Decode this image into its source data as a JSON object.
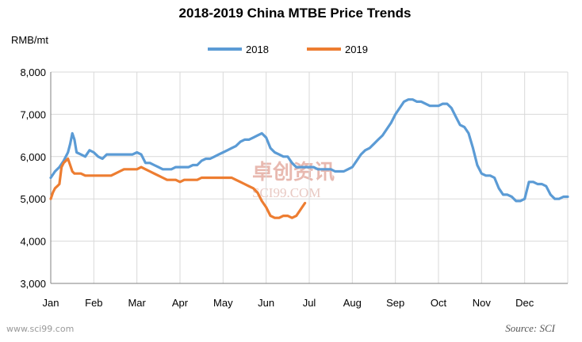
{
  "chart_data": {
    "type": "line",
    "title": "2018-2019 China MTBE Price Trends",
    "ylabel": "RMB/mt",
    "xlabel": "",
    "ylim": [
      3000,
      8000
    ],
    "yticks": [
      3000,
      4000,
      5000,
      6000,
      7000,
      8000
    ],
    "ytick_labels": [
      "3,000",
      "4,000",
      "5,000",
      "6,000",
      "7,000",
      "8,000"
    ],
    "xlim": [
      0,
      12
    ],
    "months": [
      "Jan",
      "Feb",
      "Mar",
      "Apr",
      "May",
      "Jun",
      "Jul",
      "Aug",
      "Sep",
      "Oct",
      "Nov",
      "Dec"
    ],
    "grid": true,
    "legend": "top-center",
    "source": "Source: SCI",
    "watermark_cn": "卓创资讯",
    "watermark_en": "SCI99.COM",
    "corner_watermark": "www.sci99.com",
    "series": [
      {
        "name": "2018",
        "color": "#5b9bd5",
        "x": [
          0,
          0.1,
          0.2,
          0.3,
          0.4,
          0.45,
          0.5,
          0.55,
          0.6,
          0.7,
          0.8,
          0.9,
          1.0,
          1.1,
          1.2,
          1.3,
          1.4,
          1.5,
          1.6,
          1.7,
          1.8,
          1.9,
          2.0,
          2.1,
          2.2,
          2.3,
          2.4,
          2.5,
          2.6,
          2.7,
          2.8,
          2.9,
          3.0,
          3.1,
          3.2,
          3.3,
          3.4,
          3.5,
          3.6,
          3.7,
          3.8,
          3.9,
          4.0,
          4.1,
          4.2,
          4.3,
          4.4,
          4.5,
          4.6,
          4.7,
          4.8,
          4.9,
          5.0,
          5.1,
          5.2,
          5.3,
          5.4,
          5.5,
          5.6,
          5.7,
          5.8,
          5.9,
          6.0,
          6.1,
          6.2,
          6.3,
          6.4,
          6.5,
          6.6,
          6.7,
          6.8,
          6.9,
          7.0,
          7.1,
          7.2,
          7.3,
          7.4,
          7.5,
          7.6,
          7.7,
          7.8,
          7.9,
          8.0,
          8.1,
          8.2,
          8.3,
          8.4,
          8.5,
          8.6,
          8.7,
          8.8,
          8.9,
          9.0,
          9.1,
          9.2,
          9.3,
          9.4,
          9.5,
          9.6,
          9.7,
          9.8,
          9.9,
          10.0,
          10.1,
          10.2,
          10.3,
          10.4,
          10.5,
          10.6,
          10.7,
          10.8,
          10.9,
          11.0,
          11.1,
          11.2,
          11.3,
          11.4,
          11.5,
          11.6,
          11.7,
          11.8,
          11.9,
          12.0
        ],
        "values": [
          5500,
          5650,
          5750,
          5900,
          6100,
          6300,
          6550,
          6400,
          6100,
          6050,
          6000,
          6150,
          6100,
          6000,
          5950,
          6050,
          6050,
          6050,
          6050,
          6050,
          6050,
          6050,
          6100,
          6050,
          5850,
          5850,
          5800,
          5750,
          5700,
          5700,
          5700,
          5750,
          5750,
          5750,
          5750,
          5800,
          5800,
          5900,
          5950,
          5950,
          6000,
          6050,
          6100,
          6150,
          6200,
          6250,
          6350,
          6400,
          6400,
          6450,
          6500,
          6550,
          6450,
          6200,
          6100,
          6050,
          6000,
          6000,
          5850,
          5750,
          5750,
          5750,
          5750,
          5750,
          5700,
          5700,
          5700,
          5700,
          5650,
          5650,
          5650,
          5700,
          5750,
          5900,
          6050,
          6150,
          6200,
          6300,
          6400,
          6500,
          6650,
          6800,
          7000,
          7150,
          7300,
          7350,
          7350,
          7300,
          7300,
          7250,
          7200,
          7200,
          7200,
          7250,
          7250,
          7150,
          6950,
          6750,
          6700,
          6550,
          6200,
          5800,
          5600,
          5550,
          5550,
          5500,
          5250,
          5100,
          5100,
          5050,
          4950,
          4950,
          5000,
          5400,
          5400,
          5350,
          5350,
          5300,
          5100,
          5000,
          5000,
          5050,
          5050
        ]
      },
      {
        "name": "2019",
        "color": "#ed7d31",
        "x": [
          0,
          0.05,
          0.1,
          0.15,
          0.2,
          0.25,
          0.3,
          0.35,
          0.4,
          0.45,
          0.5,
          0.55,
          0.6,
          0.7,
          0.8,
          0.9,
          1.0,
          1.1,
          1.2,
          1.3,
          1.4,
          1.5,
          1.6,
          1.7,
          1.8,
          1.9,
          2.0,
          2.1,
          2.2,
          2.3,
          2.4,
          2.5,
          2.6,
          2.7,
          2.8,
          2.9,
          3.0,
          3.1,
          3.2,
          3.3,
          3.4,
          3.5,
          3.6,
          3.7,
          3.8,
          3.9,
          4.0,
          4.1,
          4.2,
          4.3,
          4.4,
          4.5,
          4.6,
          4.7,
          4.8,
          4.9,
          5.0,
          5.1,
          5.2,
          5.3,
          5.4,
          5.5,
          5.6,
          5.7,
          5.8,
          5.9
        ],
        "values": [
          5000,
          5150,
          5250,
          5300,
          5350,
          5750,
          5850,
          5900,
          5950,
          5800,
          5650,
          5600,
          5600,
          5600,
          5550,
          5550,
          5550,
          5550,
          5550,
          5550,
          5550,
          5600,
          5650,
          5700,
          5700,
          5700,
          5700,
          5750,
          5700,
          5650,
          5600,
          5550,
          5500,
          5450,
          5450,
          5450,
          5400,
          5450,
          5450,
          5450,
          5450,
          5500,
          5500,
          5500,
          5500,
          5500,
          5500,
          5500,
          5500,
          5450,
          5400,
          5350,
          5300,
          5250,
          5150,
          4950,
          4800,
          4600,
          4550,
          4550,
          4600,
          4600,
          4550,
          4600,
          4750,
          4900
        ]
      }
    ]
  }
}
